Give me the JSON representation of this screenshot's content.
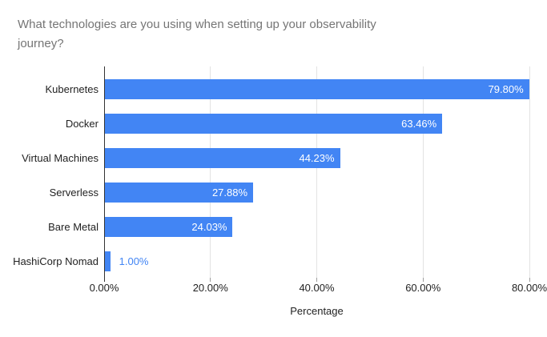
{
  "title": "What technologies are you using when setting up your observability journey?",
  "chart_data": {
    "type": "bar",
    "orientation": "horizontal",
    "title": "What technologies are you using when setting up your observability journey?",
    "categories": [
      "Kubernetes",
      "Docker",
      "Virtual Machines",
      "Serverless",
      "Bare Metal",
      "HashiCorp Nomad"
    ],
    "values": [
      79.8,
      63.46,
      44.23,
      27.88,
      24.03,
      1.0
    ],
    "value_labels": [
      "79.80%",
      "63.46%",
      "44.23%",
      "27.88%",
      "24.03%",
      "1.00%"
    ],
    "xlabel": "Percentage",
    "ylabel": "",
    "x_ticks": [
      "0.00%",
      "20.00%",
      "40.00%",
      "60.00%",
      "80.00%"
    ],
    "x_tick_values": [
      0,
      20,
      40,
      60,
      80
    ],
    "xlim": [
      0,
      80
    ],
    "legend": "none",
    "grid": true,
    "colors": {
      "bar": "#4285f4",
      "value_label_inside": "#ffffff",
      "value_label_outside": "#4285f4",
      "gridline": "#e3e3e3",
      "axis_line": "#333333",
      "tick": "#9e9e9e",
      "category_label": "#222222",
      "tick_label": "#222222",
      "axis_title": "#222222",
      "title": "#757575",
      "background": "#ffffff"
    }
  }
}
